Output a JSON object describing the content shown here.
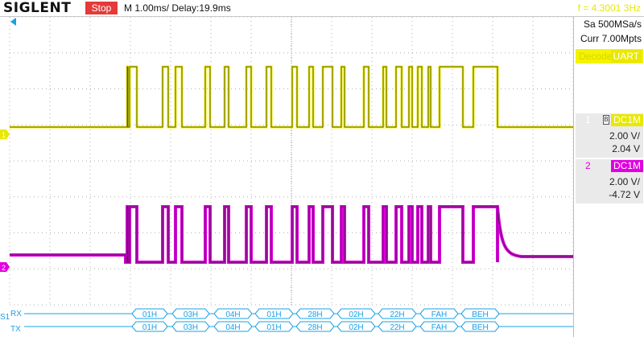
{
  "topbar": {
    "logo": "SIGLENT",
    "run_state": "Stop",
    "timebase": "M 1.00ms/ Delay:19.9ms",
    "trigger_freq": "f = 4.3001 3Hz"
  },
  "acquisition": {
    "sample_rate": "Sa 500MSa/s",
    "memory_depth": "Curr 7.00Mpts"
  },
  "decode": {
    "label": "Decode",
    "protocol": "UART"
  },
  "channels": [
    {
      "number": "1",
      "coupling": "DC1M",
      "scale": "2.00 V/",
      "offset": "2.04 V",
      "color": "#e8e800"
    },
    {
      "number": "2",
      "coupling": "DC1M",
      "scale": "2.00 V/",
      "offset": "-4.72 V",
      "color": "#e000e0"
    }
  ],
  "markers": {
    "ch1": "1",
    "ch2": "2",
    "bus": "S1"
  },
  "bus": {
    "rx_label": "RX",
    "tx_label": "TX",
    "frames": [
      {
        "x": 1.52,
        "w": 0.44,
        "value": "01H"
      },
      {
        "x": 2.02,
        "w": 0.46,
        "value": "03H"
      },
      {
        "x": 2.54,
        "w": 0.47,
        "value": "04H"
      },
      {
        "x": 3.05,
        "w": 0.47,
        "value": "01H"
      },
      {
        "x": 3.56,
        "w": 0.47,
        "value": "28H"
      },
      {
        "x": 4.07,
        "w": 0.47,
        "value": "02H"
      },
      {
        "x": 4.58,
        "w": 0.47,
        "value": "22H"
      },
      {
        "x": 5.1,
        "w": 0.47,
        "value": "FAH"
      },
      {
        "x": 5.61,
        "w": 0.47,
        "value": "BEH"
      }
    ]
  },
  "waveform_ch2_high": [
    [
      1.46,
      1.47
    ],
    [
      1.49,
      1.58
    ],
    [
      1.9,
      1.97
    ],
    [
      2.06,
      2.14
    ],
    [
      2.43,
      2.49
    ],
    [
      2.67,
      2.72
    ],
    [
      2.94,
      3.0
    ],
    [
      3.19,
      3.25
    ],
    [
      3.51,
      3.57
    ],
    [
      3.72,
      3.77
    ],
    [
      3.89,
      4.01
    ],
    [
      4.12,
      4.16
    ],
    [
      4.4,
      4.46
    ],
    [
      4.64,
      4.68
    ],
    [
      4.8,
      4.87
    ],
    [
      4.96,
      5.0
    ],
    [
      5.07,
      5.12
    ],
    [
      5.2,
      5.23
    ],
    [
      5.34,
      5.63
    ],
    [
      5.76,
      6.06
    ]
  ]
}
